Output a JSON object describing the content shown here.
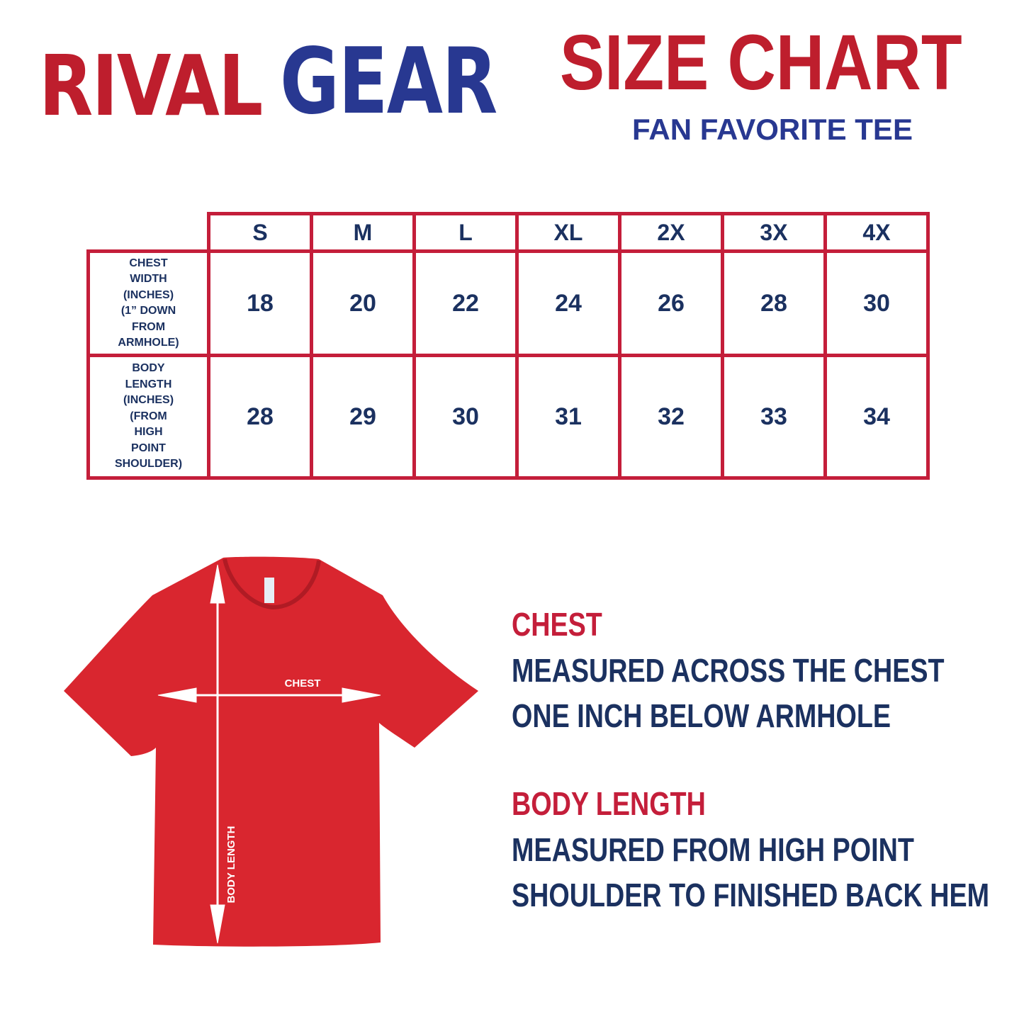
{
  "brand": {
    "logo_part1": "RIVAL",
    "logo_part2": "GEAR",
    "colors": {
      "red": "#be1e2d",
      "blue": "#283891",
      "navy": "#1b3160"
    }
  },
  "header": {
    "title": "SIZE CHART",
    "subtitle": "FAN FAVORITE TEE"
  },
  "size_table": {
    "sizes": [
      "S",
      "M",
      "L",
      "XL",
      "2X",
      "3X",
      "4X"
    ],
    "rows": [
      {
        "label_lines": [
          "CHEST",
          "WIDTH",
          "(INCHES)",
          "(1” DOWN",
          "FROM",
          "ARMHOLE)"
        ],
        "values": [
          "18",
          "20",
          "22",
          "24",
          "26",
          "28",
          "30"
        ]
      },
      {
        "label_lines": [
          "BODY",
          "LENGTH",
          "(INCHES)",
          "(FROM",
          "HIGH",
          "POINT",
          "SHOULDER)"
        ],
        "values": [
          "28",
          "29",
          "30",
          "31",
          "32",
          "33",
          "34"
        ]
      }
    ]
  },
  "diagram": {
    "chest_label": "CHEST",
    "length_label": "BODY LENGTH",
    "shirt_color": "#d9262f"
  },
  "descriptions": {
    "chest": {
      "title": "CHEST",
      "line1": "MEASURED ACROSS THE CHEST",
      "line2": "ONE INCH BELOW ARMHOLE"
    },
    "length": {
      "title": "BODY LENGTH",
      "line1": "MEASURED FROM HIGH POINT",
      "line2": "SHOULDER TO FINISHED BACK HEM"
    }
  }
}
